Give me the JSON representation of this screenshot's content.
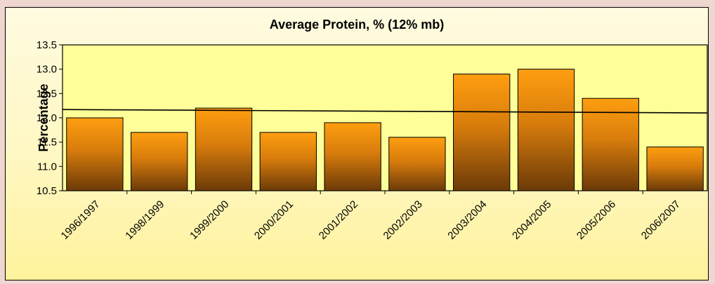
{
  "chart_data": {
    "type": "bar",
    "title": "Average Protein, % (12% mb)",
    "xlabel": "",
    "ylabel": "Percentage",
    "categories": [
      "1996/1997",
      "1998/1999",
      "1999/2000",
      "2000/2001",
      "2001/2002",
      "2002/2003",
      "2003/2004",
      "2004/2005",
      "2005/2006",
      "2006/2007"
    ],
    "series": [
      {
        "values": [
          12.0,
          11.7,
          12.2,
          11.7,
          11.9,
          11.6,
          12.9,
          13.0,
          12.4,
          11.4
        ]
      }
    ],
    "trendline": {
      "type": "linear",
      "start": 12.17,
      "end": 12.1
    },
    "ylim": [
      10.5,
      13.5
    ],
    "yticks": [
      "10.5",
      "11.0",
      "11.5",
      "12.0",
      "12.5",
      "13.0",
      "13.5"
    ],
    "grid": false,
    "legend": "none",
    "colors": {
      "bar_top": "#ff9e10",
      "bar_bottom": "#6b3a08",
      "plot_bg": "#ffff99",
      "page_bg": "#efd6cf"
    }
  }
}
